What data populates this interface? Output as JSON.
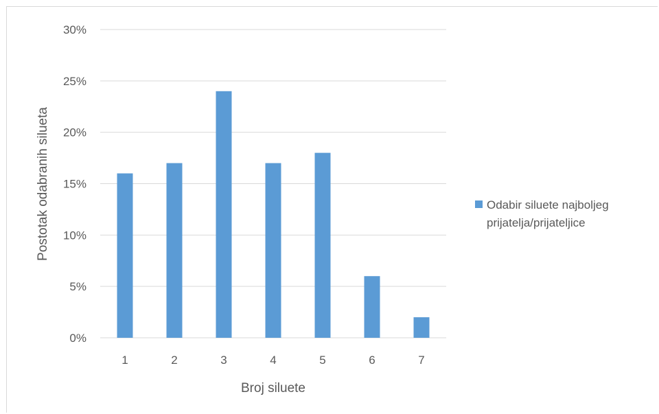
{
  "chart_data": {
    "type": "bar",
    "categories": [
      "1",
      "2",
      "3",
      "4",
      "5",
      "6",
      "7"
    ],
    "series": [
      {
        "name": "Odabir siluete najboljeg prijatelja/prijateljice",
        "values": [
          16,
          17,
          24,
          17,
          18,
          6,
          2
        ],
        "color": "#5b9bd5"
      }
    ],
    "xlabel": "Broj siluete",
    "ylabel": "Postotak odabranih silueta",
    "ylim": [
      0,
      30
    ],
    "yticks": [
      0,
      5,
      10,
      15,
      20,
      25,
      30
    ],
    "ytick_labels": [
      "0%",
      "5%",
      "10%",
      "15%",
      "20%",
      "25%",
      "30%"
    ],
    "grid": true,
    "legend_position": "right"
  },
  "colors": {
    "bar": "#5b9bd5",
    "grid": "#d9d9d9",
    "text": "#595959"
  }
}
